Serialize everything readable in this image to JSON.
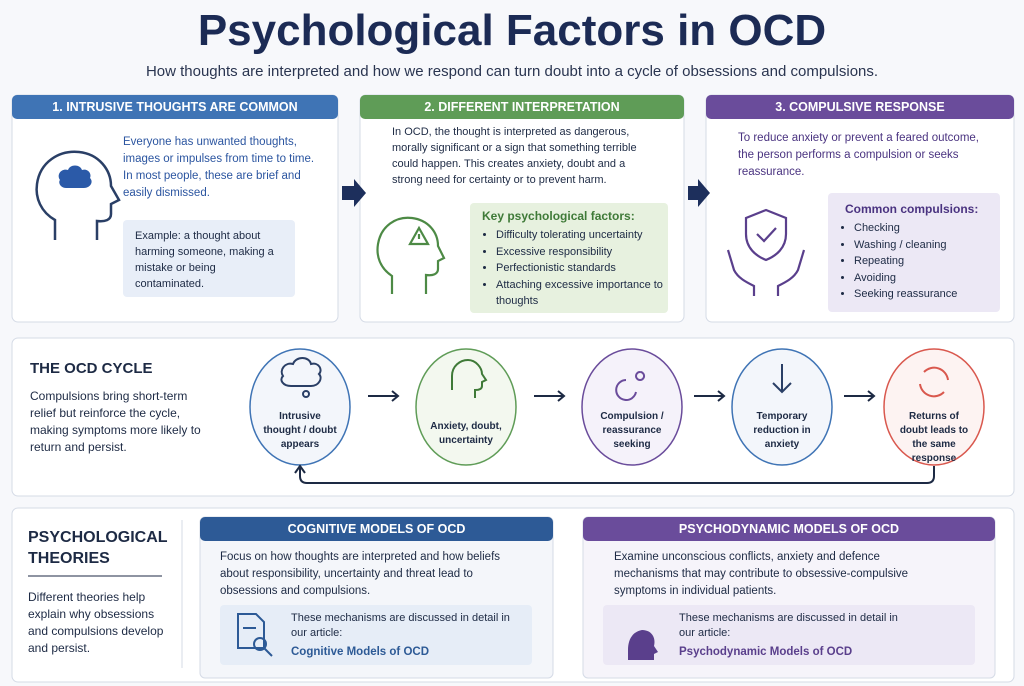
{
  "header": {
    "title": "Psychological Factors in OCD",
    "subtitle": "How thoughts are interpreted and how we respond can turn doubt into a cycle of obsessions and compulsions."
  },
  "steps": [
    {
      "title": "1. INTRUSIVE THOUGHTS ARE COMMON",
      "text": "Everyone has unwanted thoughts, images or impulses from time to time. In most people, these are brief and easily dismissed.",
      "example": "Example: a thought about harming someone, making a mistake or being contaminated."
    },
    {
      "title": "2. DIFFERENT INTERPRETATION",
      "text": "In OCD, the thought is interpreted as dangerous, morally significant or a sign that something terrible could happen. This creates anxiety, doubt and a strong need for certainty or to prevent harm.",
      "list_title": "Key psychological factors:",
      "items": [
        "Difficulty tolerating uncertainty",
        "Excessive responsibility",
        "Perfectionistic standards",
        "Attaching excessive importance to thoughts"
      ]
    },
    {
      "title": "3. COMPULSIVE RESPONSE",
      "text": "To reduce anxiety or prevent a feared outcome, the person performs a compulsion or seeks reassurance.",
      "list_title": "Common compulsions:",
      "items": [
        "Checking",
        "Washing / cleaning",
        "Repeating",
        "Avoiding",
        "Seeking reassurance"
      ]
    }
  ],
  "cycle": {
    "title": "THE OCD CYCLE",
    "text": "Compulsions bring short-term relief but reinforce the cycle, making symptoms more likely to return and persist.",
    "nodes": [
      "Intrusive thought / doubt appears",
      "Anxiety, doubt, uncertainty",
      "Compulsion / reassurance seeking",
      "Temporary reduction in anxiety",
      "Returns of doubt leads to the same response"
    ]
  },
  "theories": {
    "title": "PSYCHOLOGICAL THEORIES",
    "text": "Different theories help explain why obsessions and compulsions develop and persist.",
    "models": [
      {
        "title": "COGNITIVE MODELS OF OCD",
        "text": "Focus on how thoughts are interpreted and how beliefs about responsibility, uncertainty and threat lead to obsessions and compulsions.",
        "note": "These mechanisms are discussed in detail in our article:",
        "link": "Cognitive Models of OCD"
      },
      {
        "title": "PSYCHODYNAMIC MODELS OF OCD",
        "text": "Examine unconscious conflicts, anxiety and defence mechanisms that may contribute to obsessive-compulsive symptoms in individual patients.",
        "note": "These mechanisms are discussed in detail in our article:",
        "link": "Psychodynamic Models of OCD"
      }
    ]
  }
}
